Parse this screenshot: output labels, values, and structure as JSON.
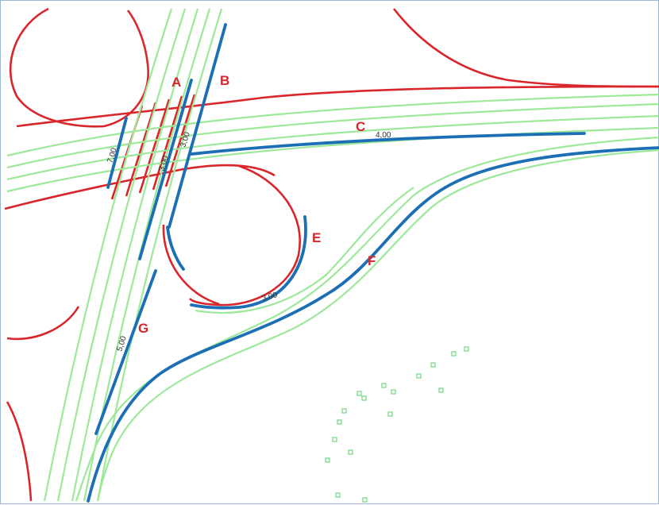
{
  "map": {
    "colors": {
      "background": "#ffffff",
      "frame": "#9bb6d6",
      "green_lane": "#9ee89a",
      "red_line": "#d9262b",
      "blue_line": "#1c6fb5",
      "label_text": "#d9262b"
    },
    "labels": {
      "A": "A",
      "B": "B",
      "C": "C",
      "E": "E",
      "F": "F",
      "G": "G"
    },
    "measurements": {
      "m1": "7,00",
      "m2": "3,00",
      "m3": "3,00",
      "m4": "4,00",
      "m5": "3,00",
      "m6": "5,00"
    }
  }
}
